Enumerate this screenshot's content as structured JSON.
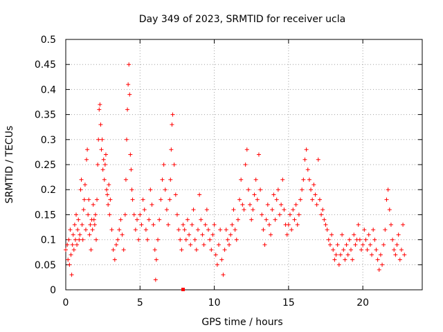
{
  "chart_data": {
    "type": "scatter",
    "title": "Day 349 of 2023, SRMTID for receiver ucla",
    "xlabel": "GPS time / hours",
    "ylabel": "SRMTID / TECUs",
    "xlim": [
      0,
      24
    ],
    "ylim": [
      0,
      0.5
    ],
    "xticks": [
      0,
      5,
      10,
      15,
      20
    ],
    "xtick_labels": [
      "0",
      "5",
      "10",
      "15",
      "20"
    ],
    "yticks": [
      0,
      0.05,
      0.1,
      0.15,
      0.2,
      0.25,
      0.3,
      0.35,
      0.4,
      0.45,
      0.5
    ],
    "ytick_labels": [
      "0",
      "0.05",
      "0.1",
      "0.15",
      "0.2",
      "0.25",
      "0.3",
      "0.35",
      "0.4",
      "0.45",
      "0.5"
    ],
    "grid": true,
    "marker": "+",
    "color": "#ff0000",
    "series": [
      {
        "name": "SRMTID",
        "points": [
          [
            0.0,
            0.08
          ],
          [
            0.1,
            0.09
          ],
          [
            0.15,
            0.06
          ],
          [
            0.2,
            0.1
          ],
          [
            0.25,
            0.05
          ],
          [
            0.3,
            0.12
          ],
          [
            0.35,
            0.07
          ],
          [
            0.4,
            0.03
          ],
          [
            0.45,
            0.09
          ],
          [
            0.5,
            0.11
          ],
          [
            0.55,
            0.08
          ],
          [
            0.6,
            0.13
          ],
          [
            0.65,
            0.1
          ],
          [
            0.7,
            0.15
          ],
          [
            0.75,
            0.09
          ],
          [
            0.8,
            0.12
          ],
          [
            0.85,
            0.14
          ],
          [
            0.9,
            0.1
          ],
          [
            0.95,
            0.11
          ],
          [
            1.0,
            0.2
          ],
          [
            1.05,
            0.22
          ],
          [
            1.1,
            0.13
          ],
          [
            1.15,
            0.1
          ],
          [
            1.2,
            0.16
          ],
          [
            1.25,
            0.18
          ],
          [
            1.3,
            0.21
          ],
          [
            1.35,
            0.12
          ],
          [
            1.4,
            0.26
          ],
          [
            1.45,
            0.28
          ],
          [
            1.5,
            0.15
          ],
          [
            1.55,
            0.18
          ],
          [
            1.6,
            0.11
          ],
          [
            1.65,
            0.13
          ],
          [
            1.7,
            0.08
          ],
          [
            1.75,
            0.14
          ],
          [
            1.8,
            0.12
          ],
          [
            1.85,
            0.17
          ],
          [
            1.9,
            0.14
          ],
          [
            1.95,
            0.13
          ],
          [
            2.0,
            0.15
          ],
          [
            2.05,
            0.1
          ],
          [
            2.1,
            0.18
          ],
          [
            2.15,
            0.25
          ],
          [
            2.2,
            0.3
          ],
          [
            2.25,
            0.36
          ],
          [
            2.3,
            0.37
          ],
          [
            2.35,
            0.33
          ],
          [
            2.4,
            0.28
          ],
          [
            2.45,
            0.3
          ],
          [
            2.5,
            0.24
          ],
          [
            2.55,
            0.26
          ],
          [
            2.6,
            0.22
          ],
          [
            2.65,
            0.25
          ],
          [
            2.7,
            0.27
          ],
          [
            2.75,
            0.2
          ],
          [
            2.8,
            0.19
          ],
          [
            2.85,
            0.17
          ],
          [
            2.9,
            0.21
          ],
          [
            2.95,
            0.15
          ],
          [
            3.0,
            0.18
          ],
          [
            3.1,
            0.12
          ],
          [
            3.2,
            0.08
          ],
          [
            3.3,
            0.06
          ],
          [
            3.4,
            0.09
          ],
          [
            3.5,
            0.1
          ],
          [
            3.6,
            0.12
          ],
          [
            3.7,
            0.14
          ],
          [
            3.8,
            0.11
          ],
          [
            3.9,
            0.08
          ],
          [
            4.0,
            0.15
          ],
          [
            4.05,
            0.22
          ],
          [
            4.1,
            0.3
          ],
          [
            4.15,
            0.36
          ],
          [
            4.2,
            0.41
          ],
          [
            4.25,
            0.45
          ],
          [
            4.3,
            0.39
          ],
          [
            4.35,
            0.27
          ],
          [
            4.4,
            0.24
          ],
          [
            4.45,
            0.2
          ],
          [
            4.5,
            0.18
          ],
          [
            4.6,
            0.15
          ],
          [
            4.7,
            0.12
          ],
          [
            4.8,
            0.14
          ],
          [
            4.9,
            0.1
          ],
          [
            5.0,
            0.15
          ],
          [
            5.1,
            0.13
          ],
          [
            5.2,
            0.18
          ],
          [
            5.3,
            0.16
          ],
          [
            5.4,
            0.12
          ],
          [
            5.5,
            0.1
          ],
          [
            5.6,
            0.14
          ],
          [
            5.7,
            0.2
          ],
          [
            5.8,
            0.17
          ],
          [
            5.9,
            0.13
          ],
          [
            6.0,
            0.08
          ],
          [
            6.05,
            0.02
          ],
          [
            6.1,
            0.06
          ],
          [
            6.2,
            0.1
          ],
          [
            6.3,
            0.14
          ],
          [
            6.4,
            0.18
          ],
          [
            6.5,
            0.22
          ],
          [
            6.6,
            0.25
          ],
          [
            6.7,
            0.2
          ],
          [
            6.8,
            0.16
          ],
          [
            6.9,
            0.13
          ],
          [
            7.0,
            0.18
          ],
          [
            7.05,
            0.22
          ],
          [
            7.1,
            0.28
          ],
          [
            7.15,
            0.33
          ],
          [
            7.2,
            0.35
          ],
          [
            7.3,
            0.25
          ],
          [
            7.4,
            0.19
          ],
          [
            7.5,
            0.15
          ],
          [
            7.6,
            0.12
          ],
          [
            7.7,
            0.1
          ],
          [
            7.8,
            0.08
          ],
          [
            7.9,
            0.13
          ],
          [
            8.0,
            0.12
          ],
          [
            8.1,
            0.1
          ],
          [
            8.2,
            0.14
          ],
          [
            8.3,
            0.11
          ],
          [
            8.4,
            0.09
          ],
          [
            8.5,
            0.13
          ],
          [
            8.6,
            0.16
          ],
          [
            8.7,
            0.1
          ],
          [
            8.8,
            0.08
          ],
          [
            8.9,
            0.12
          ],
          [
            9.0,
            0.19
          ],
          [
            9.1,
            0.14
          ],
          [
            9.2,
            0.11
          ],
          [
            9.3,
            0.09
          ],
          [
            9.4,
            0.13
          ],
          [
            9.5,
            0.16
          ],
          [
            9.6,
            0.12
          ],
          [
            9.7,
            0.1
          ],
          [
            9.8,
            0.08
          ],
          [
            9.9,
            0.11
          ],
          [
            10.0,
            0.13
          ],
          [
            10.1,
            0.07
          ],
          [
            10.2,
            0.05
          ],
          [
            10.3,
            0.09
          ],
          [
            10.4,
            0.12
          ],
          [
            10.5,
            0.06
          ],
          [
            10.6,
            0.03
          ],
          [
            10.7,
            0.08
          ],
          [
            10.8,
            0.12
          ],
          [
            10.9,
            0.1
          ],
          [
            11.0,
            0.09
          ],
          [
            11.1,
            0.11
          ],
          [
            11.2,
            0.13
          ],
          [
            11.3,
            0.16
          ],
          [
            11.4,
            0.12
          ],
          [
            11.5,
            0.1
          ],
          [
            11.6,
            0.14
          ],
          [
            11.7,
            0.18
          ],
          [
            11.8,
            0.22
          ],
          [
            11.9,
            0.17
          ],
          [
            12.0,
            0.16
          ],
          [
            12.1,
            0.25
          ],
          [
            12.2,
            0.28
          ],
          [
            12.3,
            0.2
          ],
          [
            12.4,
            0.17
          ],
          [
            12.5,
            0.14
          ],
          [
            12.6,
            0.16
          ],
          [
            12.7,
            0.19
          ],
          [
            12.8,
            0.22
          ],
          [
            12.9,
            0.18
          ],
          [
            13.0,
            0.27
          ],
          [
            13.1,
            0.2
          ],
          [
            13.2,
            0.15
          ],
          [
            13.3,
            0.12
          ],
          [
            13.4,
            0.09
          ],
          [
            13.5,
            0.14
          ],
          [
            13.6,
            0.17
          ],
          [
            13.7,
            0.13
          ],
          [
            13.8,
            0.11
          ],
          [
            13.9,
            0.16
          ],
          [
            14.0,
            0.19
          ],
          [
            14.1,
            0.14
          ],
          [
            14.2,
            0.18
          ],
          [
            14.3,
            0.2
          ],
          [
            14.4,
            0.15
          ],
          [
            14.5,
            0.17
          ],
          [
            14.6,
            0.22
          ],
          [
            14.7,
            0.16
          ],
          [
            14.8,
            0.13
          ],
          [
            14.9,
            0.11
          ],
          [
            15.0,
            0.13
          ],
          [
            15.1,
            0.15
          ],
          [
            15.2,
            0.12
          ],
          [
            15.3,
            0.16
          ],
          [
            15.4,
            0.14
          ],
          [
            15.5,
            0.17
          ],
          [
            15.6,
            0.13
          ],
          [
            15.7,
            0.15
          ],
          [
            15.8,
            0.18
          ],
          [
            15.9,
            0.2
          ],
          [
            16.0,
            0.22
          ],
          [
            16.1,
            0.26
          ],
          [
            16.2,
            0.28
          ],
          [
            16.3,
            0.24
          ],
          [
            16.4,
            0.22
          ],
          [
            16.5,
            0.2
          ],
          [
            16.6,
            0.18
          ],
          [
            16.7,
            0.21
          ],
          [
            16.8,
            0.19
          ],
          [
            16.9,
            0.17
          ],
          [
            17.0,
            0.26
          ],
          [
            17.1,
            0.18
          ],
          [
            17.2,
            0.15
          ],
          [
            17.3,
            0.16
          ],
          [
            17.4,
            0.14
          ],
          [
            17.5,
            0.13
          ],
          [
            17.6,
            0.12
          ],
          [
            17.7,
            0.1
          ],
          [
            17.8,
            0.09
          ],
          [
            17.9,
            0.11
          ],
          [
            18.0,
            0.08
          ],
          [
            18.1,
            0.06
          ],
          [
            18.2,
            0.07
          ],
          [
            18.3,
            0.09
          ],
          [
            18.4,
            0.05
          ],
          [
            18.5,
            0.07
          ],
          [
            18.6,
            0.11
          ],
          [
            18.7,
            0.08
          ],
          [
            18.8,
            0.06
          ],
          [
            18.9,
            0.09
          ],
          [
            19.0,
            0.07
          ],
          [
            19.1,
            0.1
          ],
          [
            19.2,
            0.08
          ],
          [
            19.3,
            0.06
          ],
          [
            19.4,
            0.11
          ],
          [
            19.5,
            0.09
          ],
          [
            19.6,
            0.1
          ],
          [
            19.7,
            0.13
          ],
          [
            19.8,
            0.1
          ],
          [
            19.9,
            0.08
          ],
          [
            20.0,
            0.09
          ],
          [
            20.1,
            0.12
          ],
          [
            20.2,
            0.1
          ],
          [
            20.3,
            0.08
          ],
          [
            20.4,
            0.11
          ],
          [
            20.5,
            0.09
          ],
          [
            20.6,
            0.07
          ],
          [
            20.7,
            0.12
          ],
          [
            20.8,
            0.1
          ],
          [
            20.9,
            0.08
          ],
          [
            21.0,
            0.06
          ],
          [
            21.1,
            0.04
          ],
          [
            21.2,
            0.07
          ],
          [
            21.3,
            0.05
          ],
          [
            21.4,
            0.09
          ],
          [
            21.5,
            0.12
          ],
          [
            21.6,
            0.18
          ],
          [
            21.7,
            0.2
          ],
          [
            21.8,
            0.16
          ],
          [
            21.9,
            0.13
          ],
          [
            22.0,
            0.1
          ],
          [
            22.1,
            0.08
          ],
          [
            22.2,
            0.07
          ],
          [
            22.3,
            0.09
          ],
          [
            22.4,
            0.11
          ],
          [
            22.5,
            0.06
          ],
          [
            22.6,
            0.08
          ],
          [
            22.7,
            0.13
          ],
          [
            22.8,
            0.07
          ]
        ]
      }
    ],
    "annotations": [
      {
        "x": 7.9,
        "y": 0.0,
        "marker": "square",
        "color": "#ff0000"
      }
    ]
  }
}
